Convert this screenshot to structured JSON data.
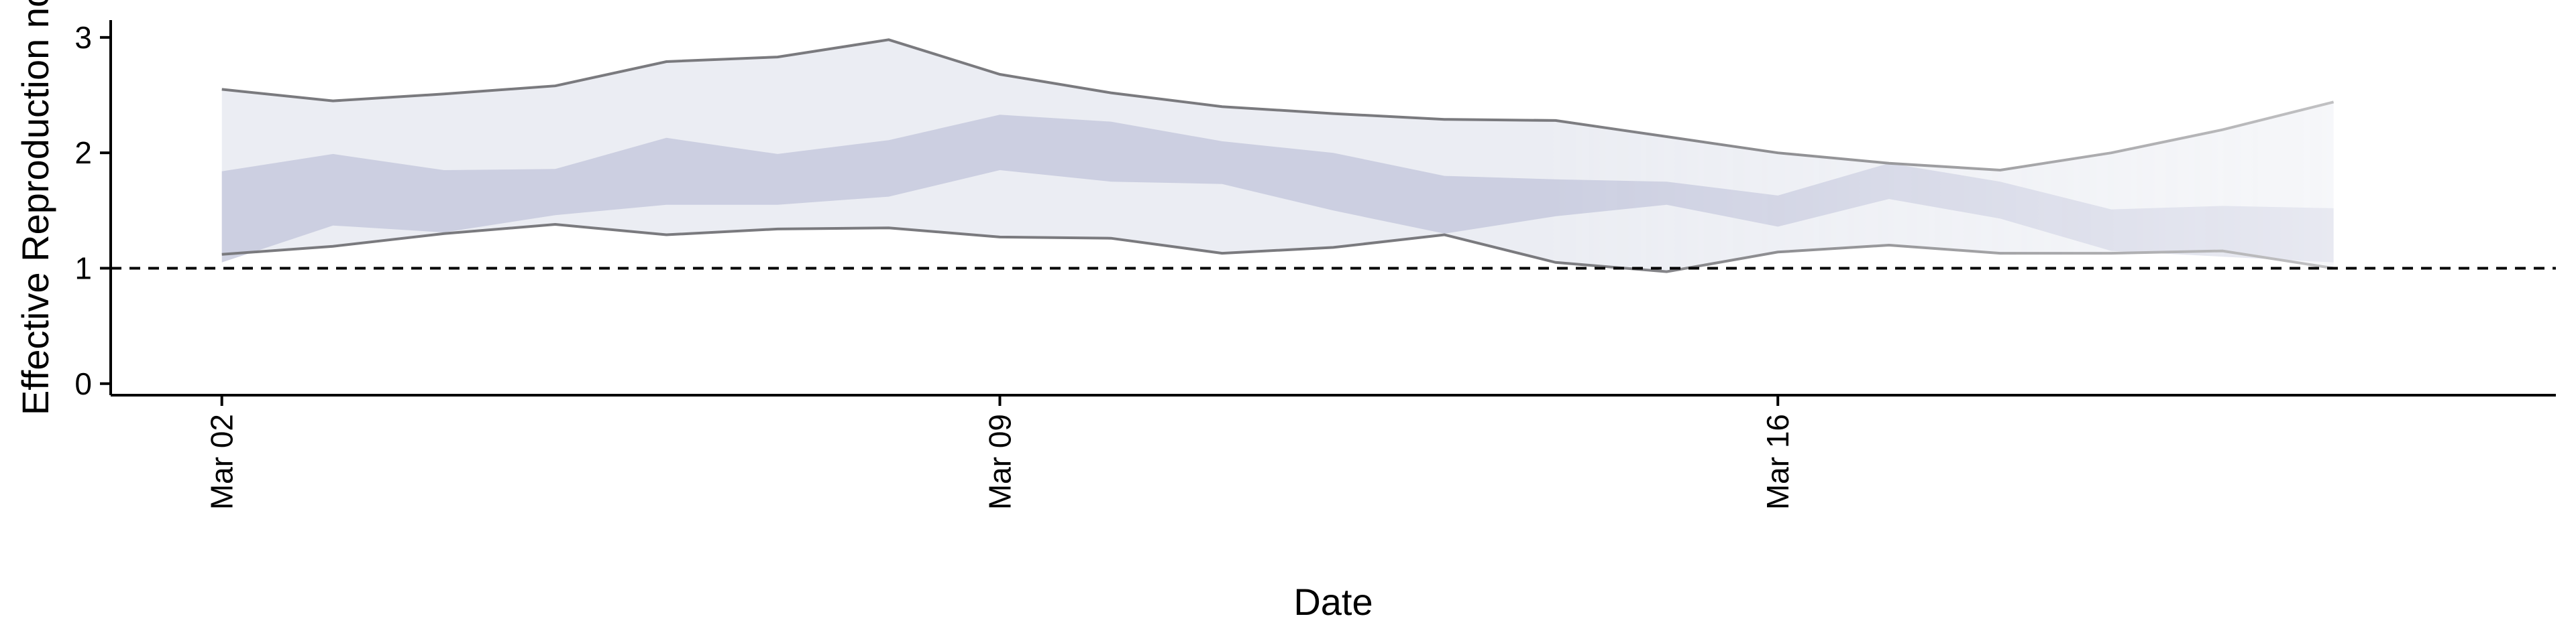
{
  "chart_data": {
    "type": "area",
    "xlabel": "Date",
    "ylabel": "Effective Reproduction no",
    "x_tick_labels": [
      "Mar 02",
      "Mar 09",
      "Mar 16"
    ],
    "x_tick_dates": [
      "2020-03-02",
      "2020-03-09",
      "2020-03-16"
    ],
    "y_ticks": [
      0,
      1,
      2,
      3
    ],
    "xlim": [
      "2020-03-01",
      "2020-03-23"
    ],
    "ylim": [
      -0.1,
      3.15
    ],
    "reference_line": {
      "y": 1,
      "style": "dashed"
    },
    "dates": [
      "2020-03-02",
      "2020-03-03",
      "2020-03-04",
      "2020-03-05",
      "2020-03-06",
      "2020-03-07",
      "2020-03-08",
      "2020-03-09",
      "2020-03-10",
      "2020-03-11",
      "2020-03-12",
      "2020-03-13",
      "2020-03-14",
      "2020-03-15",
      "2020-03-16",
      "2020-03-17",
      "2020-03-18",
      "2020-03-19",
      "2020-03-20",
      "2020-03-21"
    ],
    "outer_upper": [
      2.55,
      2.45,
      2.51,
      2.58,
      2.79,
      2.83,
      2.98,
      2.68,
      2.52,
      2.4,
      2.34,
      2.29,
      2.28,
      2.14,
      2.0,
      1.91,
      1.85,
      2.0,
      2.2,
      2.44
    ],
    "outer_lower": [
      1.12,
      1.19,
      1.3,
      1.38,
      1.29,
      1.34,
      1.35,
      1.27,
      1.26,
      1.13,
      1.18,
      1.29,
      1.05,
      0.97,
      1.14,
      1.2,
      1.13,
      1.13,
      1.15,
      1.0
    ],
    "inner_upper": [
      1.84,
      1.99,
      1.85,
      1.86,
      2.13,
      1.99,
      2.11,
      2.33,
      2.27,
      2.1,
      2.0,
      1.8,
      1.77,
      1.75,
      1.63,
      1.91,
      1.75,
      1.51,
      1.54,
      1.52
    ],
    "inner_lower": [
      1.05,
      1.37,
      1.31,
      1.46,
      1.55,
      1.55,
      1.62,
      1.85,
      1.75,
      1.73,
      1.5,
      1.3,
      1.45,
      1.55,
      1.36,
      1.6,
      1.43,
      1.15,
      1.1,
      1.05
    ],
    "colors": {
      "outer_band": "#e6e8f0",
      "inner_band": "#c4c8dc",
      "outer_line": "#7a7a7e",
      "reference_line": "#000000",
      "axis": "#000000"
    },
    "grid": false,
    "legend": "none"
  }
}
